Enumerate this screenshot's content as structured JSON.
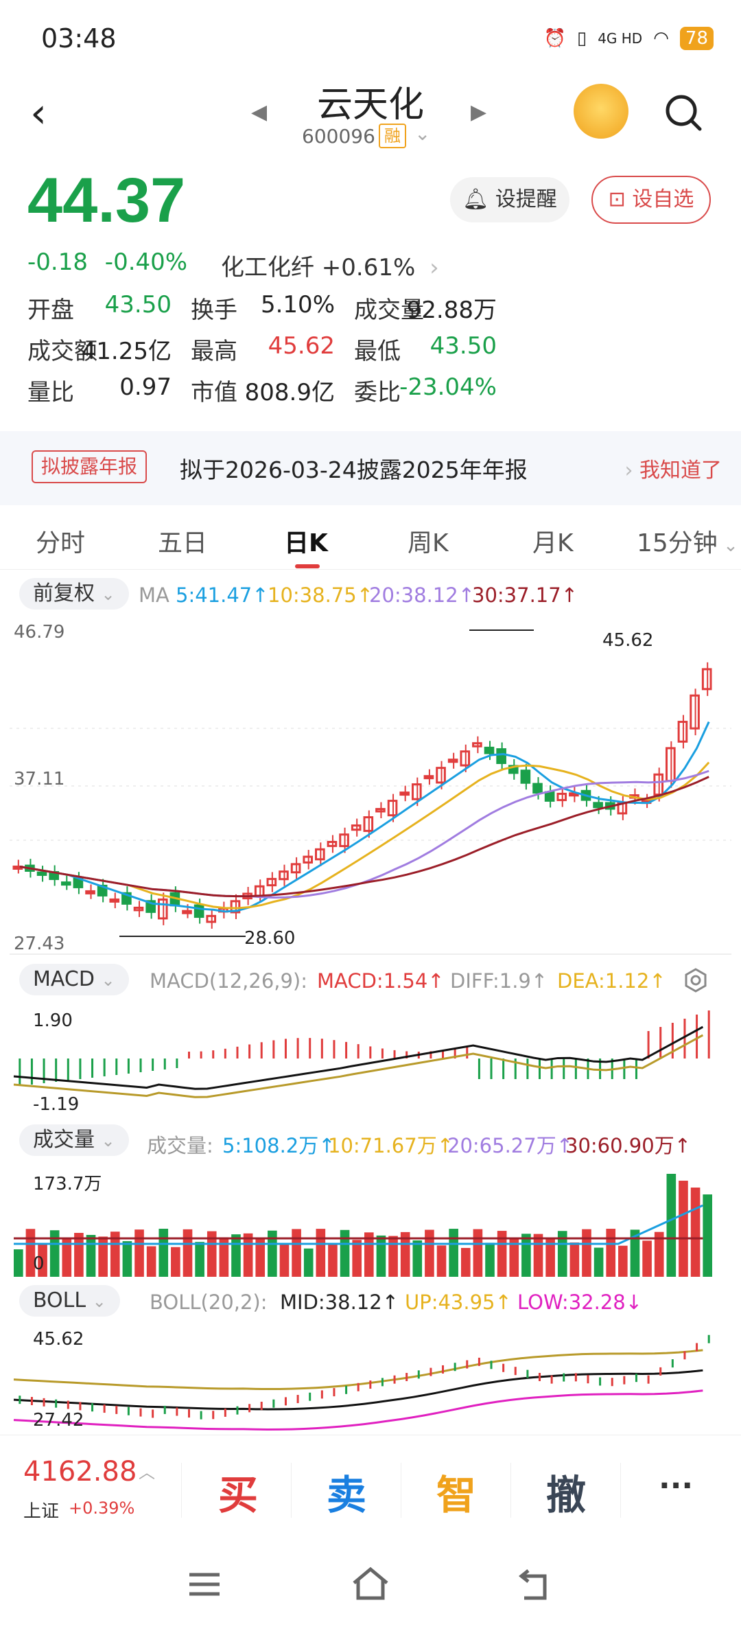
{
  "status": {
    "time": "03:48",
    "network": "4G HD",
    "battery": "78"
  },
  "header": {
    "name": "云天化",
    "code": "600096",
    "margin_tag": "融"
  },
  "quote": {
    "price": "44.37",
    "change": "-0.18",
    "change_pct": "-0.40%",
    "sector": "化工化纤 +0.61%",
    "remind_label": "设提醒",
    "fav_label": "设自选"
  },
  "stats": [
    [
      {
        "label": "开盘",
        "value": "43.50",
        "color": "green"
      },
      {
        "label": "换手",
        "value": "5.10%",
        "color": "black"
      },
      {
        "label": "成交量",
        "value": "92.88万",
        "color": "black"
      }
    ],
    [
      {
        "label": "成交额",
        "value": "41.25亿",
        "color": "black"
      },
      {
        "label": "最高",
        "value": "45.62",
        "color": "red"
      },
      {
        "label": "最低",
        "value": "43.50",
        "color": "green"
      }
    ],
    [
      {
        "label": "量比",
        "value": "0.97",
        "color": "black"
      },
      {
        "label": "市值",
        "value": "808.9亿",
        "color": "black"
      },
      {
        "label": "委比",
        "value": "-23.04%",
        "color": "green"
      }
    ]
  ],
  "notice": {
    "tag": "拟披露年报",
    "text": "拟于2026-03-24披露2025年年报",
    "ok": "我知道了"
  },
  "tabs": [
    "分时",
    "五日",
    "日K",
    "周K",
    "月K",
    "15分钟"
  ],
  "active_tab": "日K",
  "kline": {
    "adj": "前复权",
    "ma_label": "MA",
    "ma5": "5:41.47↑",
    "ma10": "10:38.75↑",
    "ma20": "20:38.12↑",
    "ma30": "30:37.17↑",
    "y_top": "46.79",
    "y_mid": "37.11",
    "y_bottom": "27.43",
    "high_mark": "45.62",
    "low_mark": "28.60"
  },
  "macd": {
    "pill": "MACD",
    "params": "MACD(12,26,9):",
    "macd": "MACD:1.54↑",
    "diff": "DIFF:1.9↑",
    "dea": "DEA:1.12↑",
    "y_top": "1.90",
    "y_bottom": "-1.19"
  },
  "volume": {
    "pill": "成交量",
    "label": "成交量:",
    "v5": "5:108.2万↑",
    "v10": "10:71.67万↑",
    "v20": "20:65.27万↑",
    "v30": "30:60.90万↑",
    "y_top": "173.7万",
    "y_bottom": "0"
  },
  "boll": {
    "pill": "BOLL",
    "params": "BOLL(20,2):",
    "mid": "MID:38.12↑",
    "up": "UP:43.95↑",
    "low": "LOW:32.28↓",
    "y_top": "45.62",
    "y_bottom": "27.42"
  },
  "bottom": {
    "index_value": "4162.88",
    "index_name": "上证",
    "index_change": "+0.39%",
    "buy": "买",
    "sell": "卖",
    "smart": "智",
    "cancel": "撤",
    "more": "···"
  },
  "colors": {
    "up": "#e03c3c",
    "down": "#1aa04a",
    "ma5": "#1a9fe0",
    "ma10": "#e6b21e",
    "ma20": "#a07ce0",
    "ma30": "#9b1e28"
  }
}
